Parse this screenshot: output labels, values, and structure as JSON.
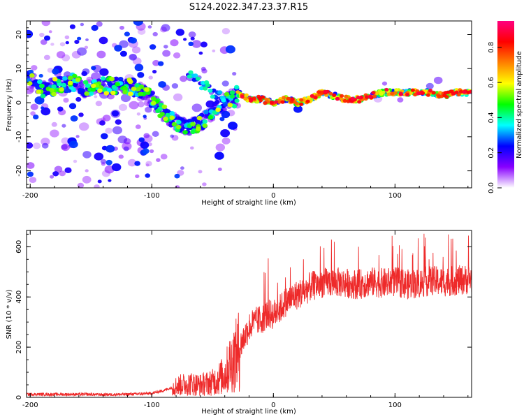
{
  "title": "S124.2022.347.23.37.R15",
  "chart_data": [
    {
      "type": "heatmap",
      "xlabel": "Height of straight line (km)",
      "ylabel": "Frequency (Hz)",
      "xlim": [
        -203,
        163
      ],
      "ylim": [
        -25,
        24
      ],
      "x_ticks": [
        "-200",
        "-100",
        "0",
        "100"
      ],
      "y_ticks": [
        "-20",
        "-10",
        "0",
        "10",
        "20"
      ],
      "colorbar": {
        "label": "Normalized spectral amplitude",
        "range": [
          0.0,
          0.95
        ],
        "ticks": [
          "0.0",
          "0.2",
          "0.4",
          "0.6",
          "0.8"
        ],
        "colors": [
          "#ffffff",
          "#8800ff",
          "#0000ff",
          "#00ffff",
          "#00ff00",
          "#ffff00",
          "#ff8000",
          "#ff0000",
          "#ff0080"
        ]
      },
      "ridge": [
        {
          "x": -200,
          "y": 7
        },
        {
          "x": -190,
          "y": 4
        },
        {
          "x": -175,
          "y": 5
        },
        {
          "x": -165,
          "y": 6
        },
        {
          "x": -155,
          "y": 4
        },
        {
          "x": -140,
          "y": 5
        },
        {
          "x": -120,
          "y": 5
        },
        {
          "x": -110,
          "y": 4
        },
        {
          "x": -100,
          "y": 1
        },
        {
          "x": -90,
          "y": -3
        },
        {
          "x": -80,
          "y": -6
        },
        {
          "x": -70,
          "y": -7
        },
        {
          "x": -60,
          "y": -6
        },
        {
          "x": -50,
          "y": -3
        },
        {
          "x": -40,
          "y": 0
        },
        {
          "x": -30,
          "y": 3
        },
        {
          "x": -20,
          "y": 1
        },
        {
          "x": -10,
          "y": 1
        },
        {
          "x": 0,
          "y": 0
        },
        {
          "x": 10,
          "y": 1
        },
        {
          "x": 20,
          "y": 0
        },
        {
          "x": 30,
          "y": 1
        },
        {
          "x": 40,
          "y": 3
        },
        {
          "x": 50,
          "y": 2
        },
        {
          "x": 60,
          "y": 1
        },
        {
          "x": 70,
          "y": 1
        },
        {
          "x": 80,
          "y": 2
        },
        {
          "x": 90,
          "y": 3
        },
        {
          "x": 100,
          "y": 3
        },
        {
          "x": 110,
          "y": 3
        },
        {
          "x": 120,
          "y": 3
        },
        {
          "x": 130,
          "y": 3
        },
        {
          "x": 140,
          "y": 2
        },
        {
          "x": 150,
          "y": 3
        },
        {
          "x": 160,
          "y": 3
        }
      ],
      "branch": [
        {
          "x": -70,
          "y": 9
        },
        {
          "x": -60,
          "y": 6
        },
        {
          "x": -50,
          "y": 3
        },
        {
          "x": -40,
          "y": 1
        },
        {
          "x": -30,
          "y": 0
        }
      ]
    },
    {
      "type": "line",
      "xlabel": "Height of straight line (km)",
      "ylabel": "SNR (10 * v/v)",
      "xlim": [
        -203,
        163
      ],
      "ylim": [
        0,
        665
      ],
      "x_ticks": [
        "-200",
        "-100",
        "0",
        "100"
      ],
      "y_ticks": [
        "0",
        "200",
        "400",
        "600"
      ],
      "color": "#ee2a2a",
      "series": [
        {
          "x": [
            -200,
            -180,
            -160,
            -140,
            -120,
            -100,
            -90,
            -80,
            -70,
            -60,
            -50,
            -40,
            -35,
            -30,
            -25,
            -20,
            -15,
            -10,
            -5,
            0,
            5,
            10,
            15,
            20,
            25,
            30,
            40,
            50,
            60,
            70,
            80,
            90,
            100,
            110,
            120,
            130,
            140,
            150,
            160
          ],
          "y": [
            12,
            12,
            12,
            11,
            12,
            16,
            28,
            45,
            55,
            50,
            60,
            90,
            140,
            170,
            230,
            280,
            300,
            310,
            330,
            330,
            350,
            380,
            395,
            410,
            420,
            440,
            455,
            460,
            455,
            450,
            460,
            455,
            460,
            450,
            455,
            465,
            460,
            465,
            470
          ]
        }
      ]
    }
  ]
}
